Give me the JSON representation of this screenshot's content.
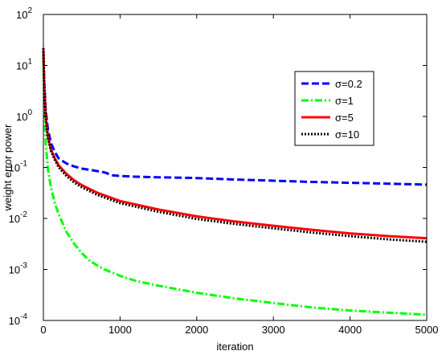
{
  "chart_data": {
    "type": "line",
    "xlabel": "iteration",
    "ylabel": "weight error power",
    "xlim": [
      0,
      5000
    ],
    "ylim": [
      0.0001,
      100
    ],
    "yscale": "log",
    "grid": false,
    "legend_position": "top-right",
    "x_ticks": [
      {
        "value": 0,
        "label": "0"
      },
      {
        "value": 1000,
        "label": "1000"
      },
      {
        "value": 2000,
        "label": "2000"
      },
      {
        "value": 3000,
        "label": "3000"
      },
      {
        "value": 4000,
        "label": "4000"
      },
      {
        "value": 5000,
        "label": "5000"
      }
    ],
    "y_ticks": [
      {
        "value": 0.0001,
        "base": "10",
        "exp": "-4"
      },
      {
        "value": 0.001,
        "base": "10",
        "exp": "-3"
      },
      {
        "value": 0.01,
        "base": "10",
        "exp": "-2"
      },
      {
        "value": 0.1,
        "base": "10",
        "exp": "-1"
      },
      {
        "value": 1,
        "base": "10",
        "exp": "0"
      },
      {
        "value": 10,
        "base": "10",
        "exp": "1"
      },
      {
        "value": 100,
        "base": "10",
        "exp": "2"
      }
    ],
    "series": [
      {
        "name": "σ=0.2",
        "color": "#0000ff",
        "style": "dashed",
        "x": [
          0,
          10,
          30,
          60,
          100,
          150,
          200,
          300,
          400,
          500,
          600,
          700,
          800,
          900,
          1000,
          1200,
          1500,
          1800,
          2000,
          2500,
          3000,
          3500,
          4000,
          4500,
          5000
        ],
        "y": [
          20,
          5,
          1.3,
          0.55,
          0.3,
          0.2,
          0.15,
          0.12,
          0.105,
          0.095,
          0.09,
          0.085,
          0.08,
          0.07,
          0.068,
          0.066,
          0.064,
          0.063,
          0.062,
          0.058,
          0.055,
          0.052,
          0.05,
          0.048,
          0.046
        ]
      },
      {
        "name": "σ=1",
        "color": "#00ff00",
        "style": "dashdot",
        "x": [
          0,
          10,
          30,
          60,
          100,
          150,
          200,
          300,
          400,
          500,
          600,
          700,
          800,
          1000,
          1200,
          1500,
          2000,
          2500,
          3000,
          3500,
          4000,
          4500,
          5000
        ],
        "y": [
          15,
          2,
          0.3,
          0.09,
          0.04,
          0.02,
          0.012,
          0.0055,
          0.0032,
          0.0021,
          0.0015,
          0.0012,
          0.001,
          0.00075,
          0.0006,
          0.00048,
          0.00035,
          0.00027,
          0.00022,
          0.00018,
          0.000157,
          0.000142,
          0.00013
        ]
      },
      {
        "name": "σ=5",
        "color": "#ff0000",
        "style": "solid",
        "x": [
          0,
          10,
          30,
          60,
          100,
          150,
          200,
          300,
          400,
          500,
          700,
          1000,
          1500,
          2000,
          2500,
          3000,
          3500,
          4000,
          4500,
          5000
        ],
        "y": [
          20,
          4,
          1,
          0.4,
          0.22,
          0.15,
          0.11,
          0.075,
          0.056,
          0.045,
          0.032,
          0.022,
          0.015,
          0.011,
          0.0087,
          0.0072,
          0.006,
          0.0051,
          0.0045,
          0.0041
        ]
      },
      {
        "name": "σ=10",
        "color": "#000000",
        "style": "dotted",
        "x": [
          0,
          10,
          30,
          60,
          100,
          150,
          200,
          300,
          400,
          500,
          700,
          1000,
          1500,
          2000,
          2500,
          3000,
          3500,
          4000,
          4500,
          5000
        ],
        "y": [
          22,
          4,
          0.95,
          0.38,
          0.21,
          0.14,
          0.1,
          0.068,
          0.051,
          0.041,
          0.029,
          0.02,
          0.0135,
          0.0098,
          0.0078,
          0.0064,
          0.0053,
          0.0045,
          0.0039,
          0.0035
        ]
      }
    ]
  }
}
